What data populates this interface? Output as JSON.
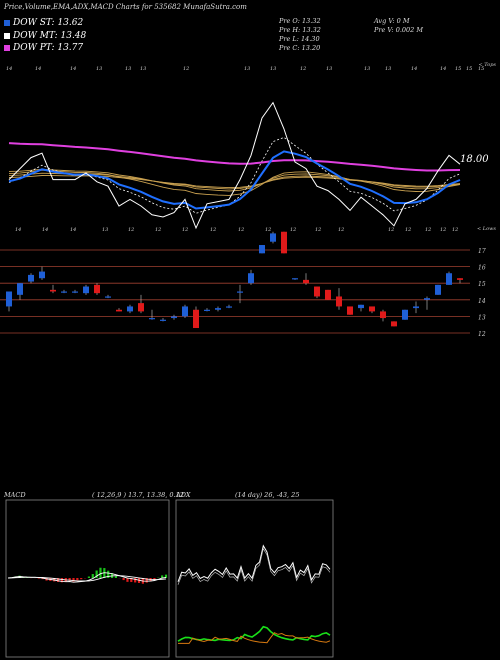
{
  "header": {
    "title": "Price,Volume,EMA,ADX,MACD Charts for 535682  MunafaSutra.com"
  },
  "legend": [
    {
      "label": "DOW ST: 13.62",
      "color": "#1f5fd6"
    },
    {
      "label": "DOW MT: 13.48",
      "color": "#ffffff"
    },
    {
      "label": "DOW PT: 13.77",
      "color": "#e040e0"
    }
  ],
  "ohlc": {
    "open": "Pre   O: 13.32",
    "high": "Pre   H: 13.32",
    "low": "Pre   L: 14.30",
    "close": "Pre   C: 13.20",
    "avg_volume": "Avg V: 0  M",
    "pre_volume": "Pre   V: 0.002  M"
  },
  "price_label": "18.00",
  "top_corner_label": "< Tops",
  "low_corner_label": "< Lows",
  "macd": {
    "label": "MACD",
    "params": "( 12,26,9 ) 13.7,  13.38,  0.12"
  },
  "adx": {
    "label": "ADX",
    "params": "(14  day) 26,  -43,  25"
  },
  "chart_data": {
    "type": "line",
    "axis_ticks": [
      "17",
      "16",
      "15",
      "14",
      "13",
      "12"
    ],
    "top_labels": [
      "14",
      "14",
      "14",
      "13",
      "13",
      "13",
      "12",
      "13",
      "13",
      "12",
      "13",
      "13",
      "13",
      "14",
      "14",
      "15",
      "15",
      "15"
    ],
    "low_labels": [
      "14",
      "14",
      "14",
      "13",
      "12",
      "12",
      "12",
      "12",
      "12",
      "12",
      "12",
      "12",
      "12",
      "12",
      "12",
      "12",
      "12",
      "12"
    ],
    "candles": [
      {
        "o": 13.6,
        "h": 14.5,
        "l": 13.3,
        "c": 14.5
      },
      {
        "o": 14.3,
        "h": 15.0,
        "l": 14.0,
        "c": 15.0
      },
      {
        "o": 15.1,
        "h": 15.6,
        "l": 15.0,
        "c": 15.5
      },
      {
        "o": 15.3,
        "h": 16.0,
        "l": 15.2,
        "c": 15.7
      },
      {
        "o": 14.6,
        "h": 14.9,
        "l": 14.4,
        "c": 14.5
      },
      {
        "o": 14.5,
        "h": 14.6,
        "l": 14.4,
        "c": 14.5
      },
      {
        "o": 14.5,
        "h": 14.6,
        "l": 14.4,
        "c": 14.5
      },
      {
        "o": 14.4,
        "h": 14.9,
        "l": 14.3,
        "c": 14.8
      },
      {
        "o": 14.9,
        "h": 15.0,
        "l": 14.3,
        "c": 14.4
      },
      {
        "o": 14.2,
        "h": 14.3,
        "l": 14.1,
        "c": 14.2
      },
      {
        "o": 13.4,
        "h": 13.5,
        "l": 13.3,
        "c": 13.3
      },
      {
        "o": 13.3,
        "h": 13.7,
        "l": 13.2,
        "c": 13.6
      },
      {
        "o": 13.8,
        "h": 14.3,
        "l": 13.2,
        "c": 13.3
      },
      {
        "o": 12.9,
        "h": 13.4,
        "l": 12.8,
        "c": 12.9
      },
      {
        "o": 12.8,
        "h": 12.9,
        "l": 12.7,
        "c": 12.8
      },
      {
        "o": 12.9,
        "h": 13.1,
        "l": 12.8,
        "c": 13.0
      },
      {
        "o": 13.0,
        "h": 13.7,
        "l": 12.9,
        "c": 13.6
      },
      {
        "o": 13.4,
        "h": 13.6,
        "l": 12.3,
        "c": 12.3
      },
      {
        "o": 13.4,
        "h": 13.5,
        "l": 13.3,
        "c": 13.4
      },
      {
        "o": 13.4,
        "h": 13.6,
        "l": 13.3,
        "c": 13.5
      },
      {
        "o": 13.6,
        "h": 13.7,
        "l": 13.5,
        "c": 13.6
      },
      {
        "o": 14.5,
        "h": 14.9,
        "l": 13.8,
        "c": 14.5
      },
      {
        "o": 15.0,
        "h": 15.8,
        "l": 14.9,
        "c": 15.6
      },
      {
        "o": 16.8,
        "h": 17.3,
        "l": 16.8,
        "c": 17.3
      },
      {
        "o": 17.5,
        "h": 18.1,
        "l": 17.4,
        "c": 18.0
      },
      {
        "o": 18.1,
        "h": 18.1,
        "l": 16.8,
        "c": 16.8
      },
      {
        "o": 15.3,
        "h": 15.3,
        "l": 15.2,
        "c": 15.3
      },
      {
        "o": 15.2,
        "h": 15.6,
        "l": 14.9,
        "c": 15.0
      },
      {
        "o": 14.8,
        "h": 14.8,
        "l": 14.1,
        "c": 14.2
      },
      {
        "o": 14.6,
        "h": 14.6,
        "l": 14.0,
        "c": 14.0
      },
      {
        "o": 14.2,
        "h": 14.7,
        "l": 13.4,
        "c": 13.6
      },
      {
        "o": 13.6,
        "h": 13.6,
        "l": 13.1,
        "c": 13.1
      },
      {
        "o": 13.5,
        "h": 13.7,
        "l": 13.3,
        "c": 13.7
      },
      {
        "o": 13.6,
        "h": 13.6,
        "l": 13.2,
        "c": 13.3
      },
      {
        "o": 13.3,
        "h": 13.4,
        "l": 12.7,
        "c": 12.9
      },
      {
        "o": 12.7,
        "h": 12.7,
        "l": 12.4,
        "c": 12.4
      },
      {
        "o": 12.8,
        "h": 13.4,
        "l": 12.8,
        "c": 13.4
      },
      {
        "o": 13.5,
        "h": 13.9,
        "l": 13.2,
        "c": 13.6
      },
      {
        "o": 14.0,
        "h": 14.2,
        "l": 13.4,
        "c": 14.1
      },
      {
        "o": 14.3,
        "h": 14.9,
        "l": 14.3,
        "c": 14.9
      },
      {
        "o": 14.9,
        "h": 15.7,
        "l": 14.9,
        "c": 15.6
      },
      {
        "o": 15.3,
        "h": 15.3,
        "l": 15.0,
        "c": 15.2
      }
    ],
    "colors": {
      "up": "#1f5fd6",
      "down": "#e01a1a",
      "ema_short": "#1f6fff",
      "ema_pt": "#e040e0",
      "ema_mid": "#ffffff",
      "ema_gold": "#c8a050",
      "macd_pos": "#19c219",
      "macd_neg": "#e01a1a",
      "adx_green": "#19e019",
      "adx_orange": "#d87a10",
      "grid_line": "#a04030"
    }
  }
}
